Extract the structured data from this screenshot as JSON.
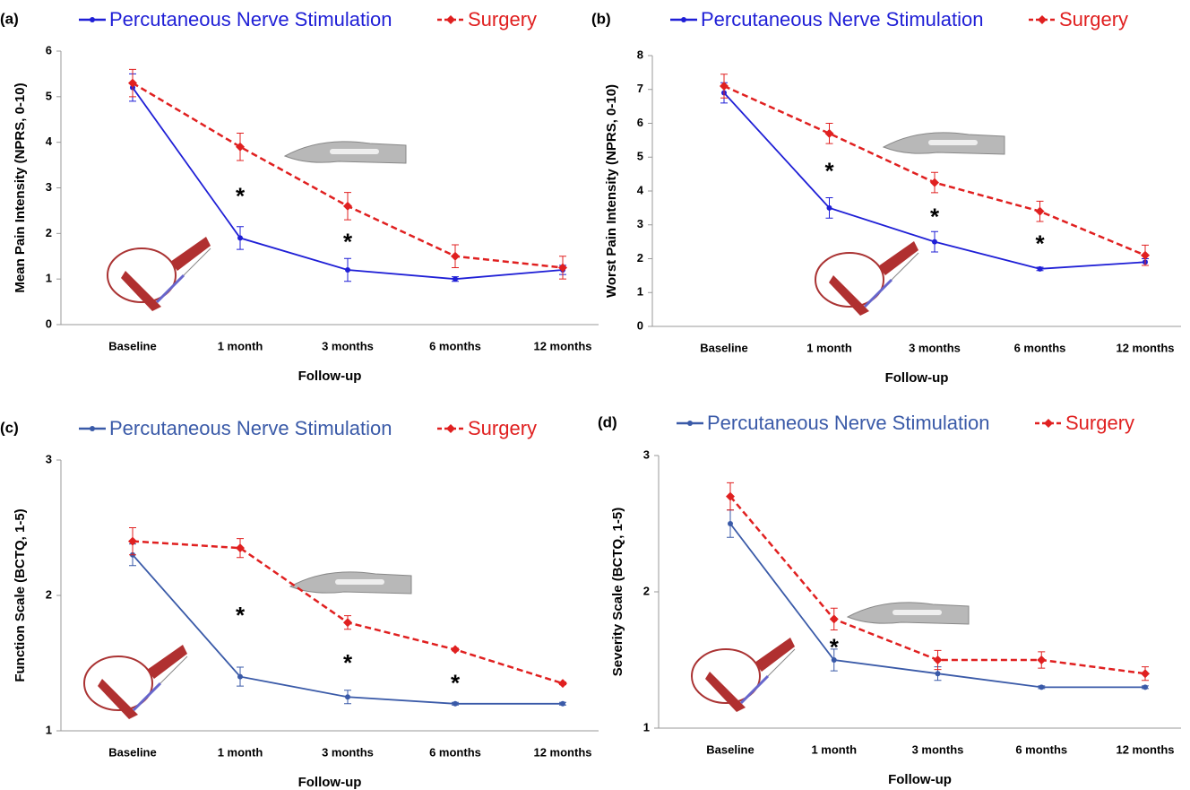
{
  "chart_data": [
    {
      "type": "line",
      "label": "(a)",
      "ylabel": "Mean Pain Intensity (NPRS, 0-10)",
      "xlabel": "Follow-up",
      "categories": [
        "Baseline",
        "1 month",
        "3 months",
        "6 months",
        "12 months"
      ],
      "ylim": [
        0,
        6
      ],
      "yticks": [
        0,
        1,
        2,
        3,
        4,
        5,
        6
      ],
      "series": [
        {
          "name": "Percutaneous Nerve Stimulation",
          "color": "#1f1fd6",
          "values": [
            5.2,
            1.9,
            1.2,
            1.0,
            1.2
          ],
          "errors": [
            0.3,
            0.25,
            0.25,
            0.05,
            0.1
          ]
        },
        {
          "name": "Surgery",
          "color": "#e02020",
          "values": [
            5.3,
            3.9,
            2.6,
            1.5,
            1.25
          ],
          "errors": [
            0.3,
            0.3,
            0.3,
            0.25,
            0.25
          ]
        }
      ],
      "annotations": [
        {
          "text": "*",
          "x": "1 month",
          "y": 2.9
        },
        {
          "text": "*",
          "x": "3 months",
          "y": 1.9
        }
      ]
    },
    {
      "type": "line",
      "label": "(b)",
      "ylabel": "Worst Pain Intensity (NPRS, 0-10)",
      "xlabel": "Follow-up",
      "categories": [
        "Baseline",
        "1 month",
        "3 months",
        "6 months",
        "12 months"
      ],
      "ylim": [
        0,
        8
      ],
      "yticks": [
        0,
        1,
        2,
        3,
        4,
        5,
        6,
        7,
        8
      ],
      "series": [
        {
          "name": "Percutaneous Nerve Stimulation",
          "color": "#1f1fd6",
          "values": [
            6.9,
            3.5,
            2.5,
            1.7,
            1.9
          ],
          "errors": [
            0.3,
            0.3,
            0.3,
            0.05,
            0.1
          ]
        },
        {
          "name": "Surgery",
          "color": "#e02020",
          "values": [
            7.1,
            5.7,
            4.25,
            3.4,
            2.1
          ],
          "errors": [
            0.35,
            0.3,
            0.3,
            0.3,
            0.3
          ]
        }
      ],
      "annotations": [
        {
          "text": "*",
          "x": "1 month",
          "y": 4.7
        },
        {
          "text": "*",
          "x": "3 months",
          "y": 3.35
        },
        {
          "text": "*",
          "x": "6 months",
          "y": 2.55
        }
      ]
    },
    {
      "type": "line",
      "label": "(c)",
      "ylabel": "Function Scale (BCTQ, 1-5)",
      "xlabel": "Follow-up",
      "categories": [
        "Baseline",
        "1 month",
        "3 months",
        "6 months",
        "12 months"
      ],
      "ylim": [
        1,
        3
      ],
      "yticks": [
        1,
        2,
        3
      ],
      "series": [
        {
          "name": "Percutaneous Nerve Stimulation",
          "color": "#3a5aa8",
          "values": [
            2.3,
            1.4,
            1.25,
            1.2,
            1.2
          ],
          "errors": [
            0.08,
            0.07,
            0.05,
            0.01,
            0.01
          ]
        },
        {
          "name": "Surgery",
          "color": "#e02020",
          "values": [
            2.4,
            2.35,
            1.8,
            1.6,
            1.35
          ],
          "errors": [
            0.1,
            0.07,
            0.05,
            0.01,
            0.01
          ]
        }
      ],
      "annotations": [
        {
          "text": "*",
          "x": "1 month",
          "y": 1.88
        },
        {
          "text": "*",
          "x": "3 months",
          "y": 1.53
        },
        {
          "text": "*",
          "x": "6 months",
          "y": 1.38
        }
      ]
    },
    {
      "type": "line",
      "label": "(d)",
      "ylabel": "Severity Scale (BCTQ, 1-5)",
      "xlabel": "Follow-up",
      "categories": [
        "Baseline",
        "1 month",
        "3 months",
        "6 months",
        "12 months"
      ],
      "ylim": [
        1,
        3
      ],
      "yticks": [
        1,
        2,
        3
      ],
      "series": [
        {
          "name": "Percutaneous Nerve Stimulation",
          "color": "#3a5aa8",
          "values": [
            2.5,
            1.5,
            1.4,
            1.3,
            1.3
          ],
          "errors": [
            0.1,
            0.08,
            0.05,
            0.01,
            0.01
          ]
        },
        {
          "name": "Surgery",
          "color": "#e02020",
          "values": [
            2.7,
            1.8,
            1.5,
            1.5,
            1.4
          ],
          "errors": [
            0.1,
            0.08,
            0.07,
            0.06,
            0.05
          ]
        }
      ],
      "annotations": [
        {
          "text": "*",
          "x": "1 month",
          "y": 1.62
        }
      ]
    }
  ]
}
